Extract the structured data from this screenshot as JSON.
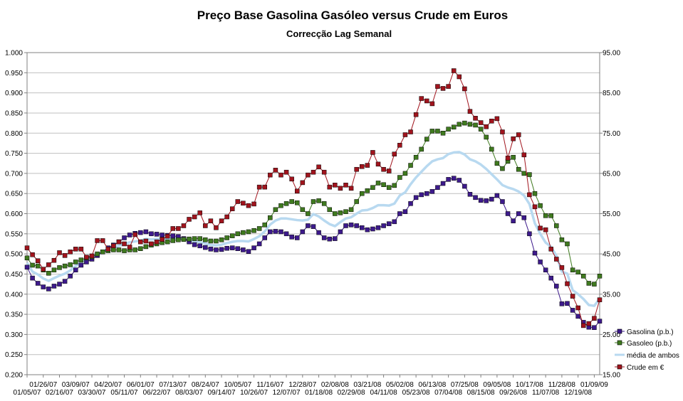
{
  "chart_data": {
    "type": "line",
    "title": "Preço Base Gasolina Gasóleo versus Crude em Euros",
    "subtitle": "Correcção Lag Semanal",
    "xlabel": "",
    "ylabel": "",
    "ylim": [
      0.2,
      1.0
    ],
    "y2lim": [
      15.0,
      95.0
    ],
    "y_ticks": [
      "0.200",
      "0.250",
      "0.300",
      "0.350",
      "0.400",
      "0.450",
      "0.500",
      "0.550",
      "0.600",
      "0.650",
      "0.700",
      "0.750",
      "0.800",
      "0.850",
      "0.900",
      "0.950",
      "1.000"
    ],
    "y2_ticks": [
      "15.00",
      "25.00",
      "35.00",
      "45.00",
      "55.00",
      "65.00",
      "75.00",
      "85.00",
      "95.00"
    ],
    "x_ticks_upper": [
      "01/26/07",
      "03/09/07",
      "04/20/07",
      "06/01/07",
      "07/13/07",
      "08/24/07",
      "10/05/07",
      "11/16/07",
      "12/28/07",
      "02/08/08",
      "03/21/08",
      "05/02/08",
      "06/13/08",
      "07/25/08",
      "09/05/08",
      "10/17/08",
      "11/28/08",
      "01/09/09"
    ],
    "x_ticks_lower": [
      "01/05/07",
      "02/16/07",
      "03/30/07",
      "05/11/07",
      "06/22/07",
      "08/03/07",
      "09/14/07",
      "10/26/07",
      "12/07/07",
      "01/18/08",
      "02/29/08",
      "04/11/08",
      "05/23/08",
      "07/04/08",
      "08/15/08",
      "09/26/08",
      "11/07/08",
      "12/19/08"
    ],
    "legend_position": "right",
    "series": [
      {
        "name": "Gasolina (p.b.)",
        "axis": "left",
        "color": "#3d1a8c",
        "marker": "square",
        "values": [
          0.467,
          0.44,
          0.427,
          0.418,
          0.413,
          0.42,
          0.425,
          0.432,
          0.445,
          0.46,
          0.472,
          0.48,
          0.487,
          0.496,
          0.505,
          0.515,
          0.522,
          0.53,
          0.54,
          0.547,
          0.551,
          0.553,
          0.555,
          0.55,
          0.549,
          0.547,
          0.546,
          0.545,
          0.543,
          0.538,
          0.53,
          0.523,
          0.52,
          0.516,
          0.512,
          0.51,
          0.511,
          0.514,
          0.515,
          0.513,
          0.51,
          0.506,
          0.515,
          0.525,
          0.54,
          0.555,
          0.556,
          0.555,
          0.55,
          0.542,
          0.54,
          0.555,
          0.57,
          0.568,
          0.553,
          0.54,
          0.537,
          0.538,
          0.555,
          0.57,
          0.572,
          0.57,
          0.565,
          0.56,
          0.562,
          0.565,
          0.57,
          0.575,
          0.58,
          0.6,
          0.605,
          0.625,
          0.64,
          0.647,
          0.65,
          0.655,
          0.665,
          0.675,
          0.685,
          0.688,
          0.683,
          0.668,
          0.648,
          0.64,
          0.633,
          0.632,
          0.636,
          0.645,
          0.63,
          0.6,
          0.582,
          0.6,
          0.59,
          0.55,
          0.502,
          0.48,
          0.46,
          0.44,
          0.42,
          0.376,
          0.377,
          0.36,
          0.345,
          0.33,
          0.318,
          0.317,
          0.333
        ]
      },
      {
        "name": "Gasoleo (p.b.)",
        "axis": "left",
        "color": "#3f7a1f",
        "marker": "square",
        "values": [
          0.49,
          0.472,
          0.47,
          0.46,
          0.452,
          0.46,
          0.466,
          0.47,
          0.473,
          0.48,
          0.485,
          0.49,
          0.493,
          0.5,
          0.505,
          0.508,
          0.51,
          0.51,
          0.508,
          0.51,
          0.51,
          0.513,
          0.518,
          0.522,
          0.525,
          0.528,
          0.53,
          0.533,
          0.535,
          0.536,
          0.537,
          0.538,
          0.538,
          0.535,
          0.532,
          0.532,
          0.535,
          0.54,
          0.545,
          0.55,
          0.553,
          0.555,
          0.558,
          0.563,
          0.572,
          0.59,
          0.61,
          0.62,
          0.625,
          0.63,
          0.627,
          0.61,
          0.6,
          0.63,
          0.632,
          0.625,
          0.61,
          0.6,
          0.602,
          0.605,
          0.61,
          0.63,
          0.65,
          0.657,
          0.665,
          0.676,
          0.672,
          0.665,
          0.67,
          0.69,
          0.7,
          0.72,
          0.74,
          0.76,
          0.785,
          0.805,
          0.805,
          0.8,
          0.81,
          0.815,
          0.822,
          0.825,
          0.822,
          0.82,
          0.81,
          0.79,
          0.76,
          0.725,
          0.712,
          0.73,
          0.74,
          0.71,
          0.7,
          0.697,
          0.65,
          0.62,
          0.595,
          0.595,
          0.57,
          0.535,
          0.525,
          0.46,
          0.455,
          0.445,
          0.427,
          0.425,
          0.445
        ]
      },
      {
        "name": "média de ambos",
        "axis": "left",
        "color": "#b8d9f0",
        "marker": "none",
        "values": [
          0.478,
          0.456,
          0.449,
          0.439,
          0.433,
          0.44,
          0.446,
          0.451,
          0.459,
          0.47,
          0.479,
          0.485,
          0.49,
          0.498,
          0.505,
          0.512,
          0.516,
          0.52,
          0.524,
          0.529,
          0.531,
          0.533,
          0.537,
          0.536,
          0.537,
          0.538,
          0.538,
          0.539,
          0.539,
          0.537,
          0.534,
          0.531,
          0.529,
          0.526,
          0.522,
          0.521,
          0.523,
          0.527,
          0.53,
          0.532,
          0.532,
          0.531,
          0.537,
          0.544,
          0.556,
          0.573,
          0.583,
          0.588,
          0.588,
          0.586,
          0.584,
          0.583,
          0.585,
          0.599,
          0.593,
          0.583,
          0.574,
          0.569,
          0.579,
          0.588,
          0.591,
          0.6,
          0.608,
          0.609,
          0.614,
          0.621,
          0.621,
          0.62,
          0.625,
          0.645,
          0.653,
          0.673,
          0.69,
          0.704,
          0.718,
          0.73,
          0.735,
          0.738,
          0.748,
          0.752,
          0.753,
          0.747,
          0.735,
          0.73,
          0.722,
          0.711,
          0.698,
          0.685,
          0.671,
          0.665,
          0.661,
          0.655,
          0.645,
          0.624,
          0.576,
          0.55,
          0.528,
          0.518,
          0.495,
          0.456,
          0.451,
          0.41,
          0.4,
          0.388,
          0.373,
          0.371,
          0.389
        ]
      },
      {
        "name": "Crude em €",
        "axis": "right",
        "color": "#a1141d",
        "marker": "square",
        "values": [
          46.5,
          44.8,
          43.3,
          41.2,
          42.3,
          43.4,
          45.3,
          44.6,
          45.5,
          46.2,
          46.2,
          44.2,
          44.5,
          48.3,
          48.3,
          46.2,
          47.0,
          48.0,
          47.5,
          46.7,
          49.8,
          48.0,
          48.2,
          47.5,
          48.0,
          48.6,
          49.4,
          51.3,
          51.3,
          52.0,
          53.6,
          54.2,
          55.2,
          52.0,
          53.2,
          51.5,
          53.2,
          54.2,
          56.2,
          58.0,
          57.6,
          57.0,
          57.4,
          61.6,
          61.6,
          64.6,
          65.8,
          64.6,
          65.3,
          63.6,
          60.6,
          62.7,
          64.6,
          65.3,
          66.6,
          65.3,
          61.6,
          62.1,
          61.3,
          62.1,
          61.3,
          66.0,
          66.7,
          67.0,
          70.2,
          67.3,
          66.0,
          65.6,
          69.8,
          72.0,
          74.6,
          75.3,
          79.6,
          83.6,
          83.0,
          82.3,
          86.6,
          86.1,
          86.6,
          90.5,
          89.0,
          86.0,
          80.4,
          78.7,
          77.6,
          76.6,
          78.0,
          78.6,
          75.3,
          68.8,
          73.6,
          74.6,
          69.6,
          59.7,
          56.7,
          51.4,
          51.0,
          46.2,
          43.7,
          41.6,
          37.6,
          34.5,
          31.6,
          27.2,
          27.7,
          29.0,
          33.6
        ]
      }
    ]
  }
}
